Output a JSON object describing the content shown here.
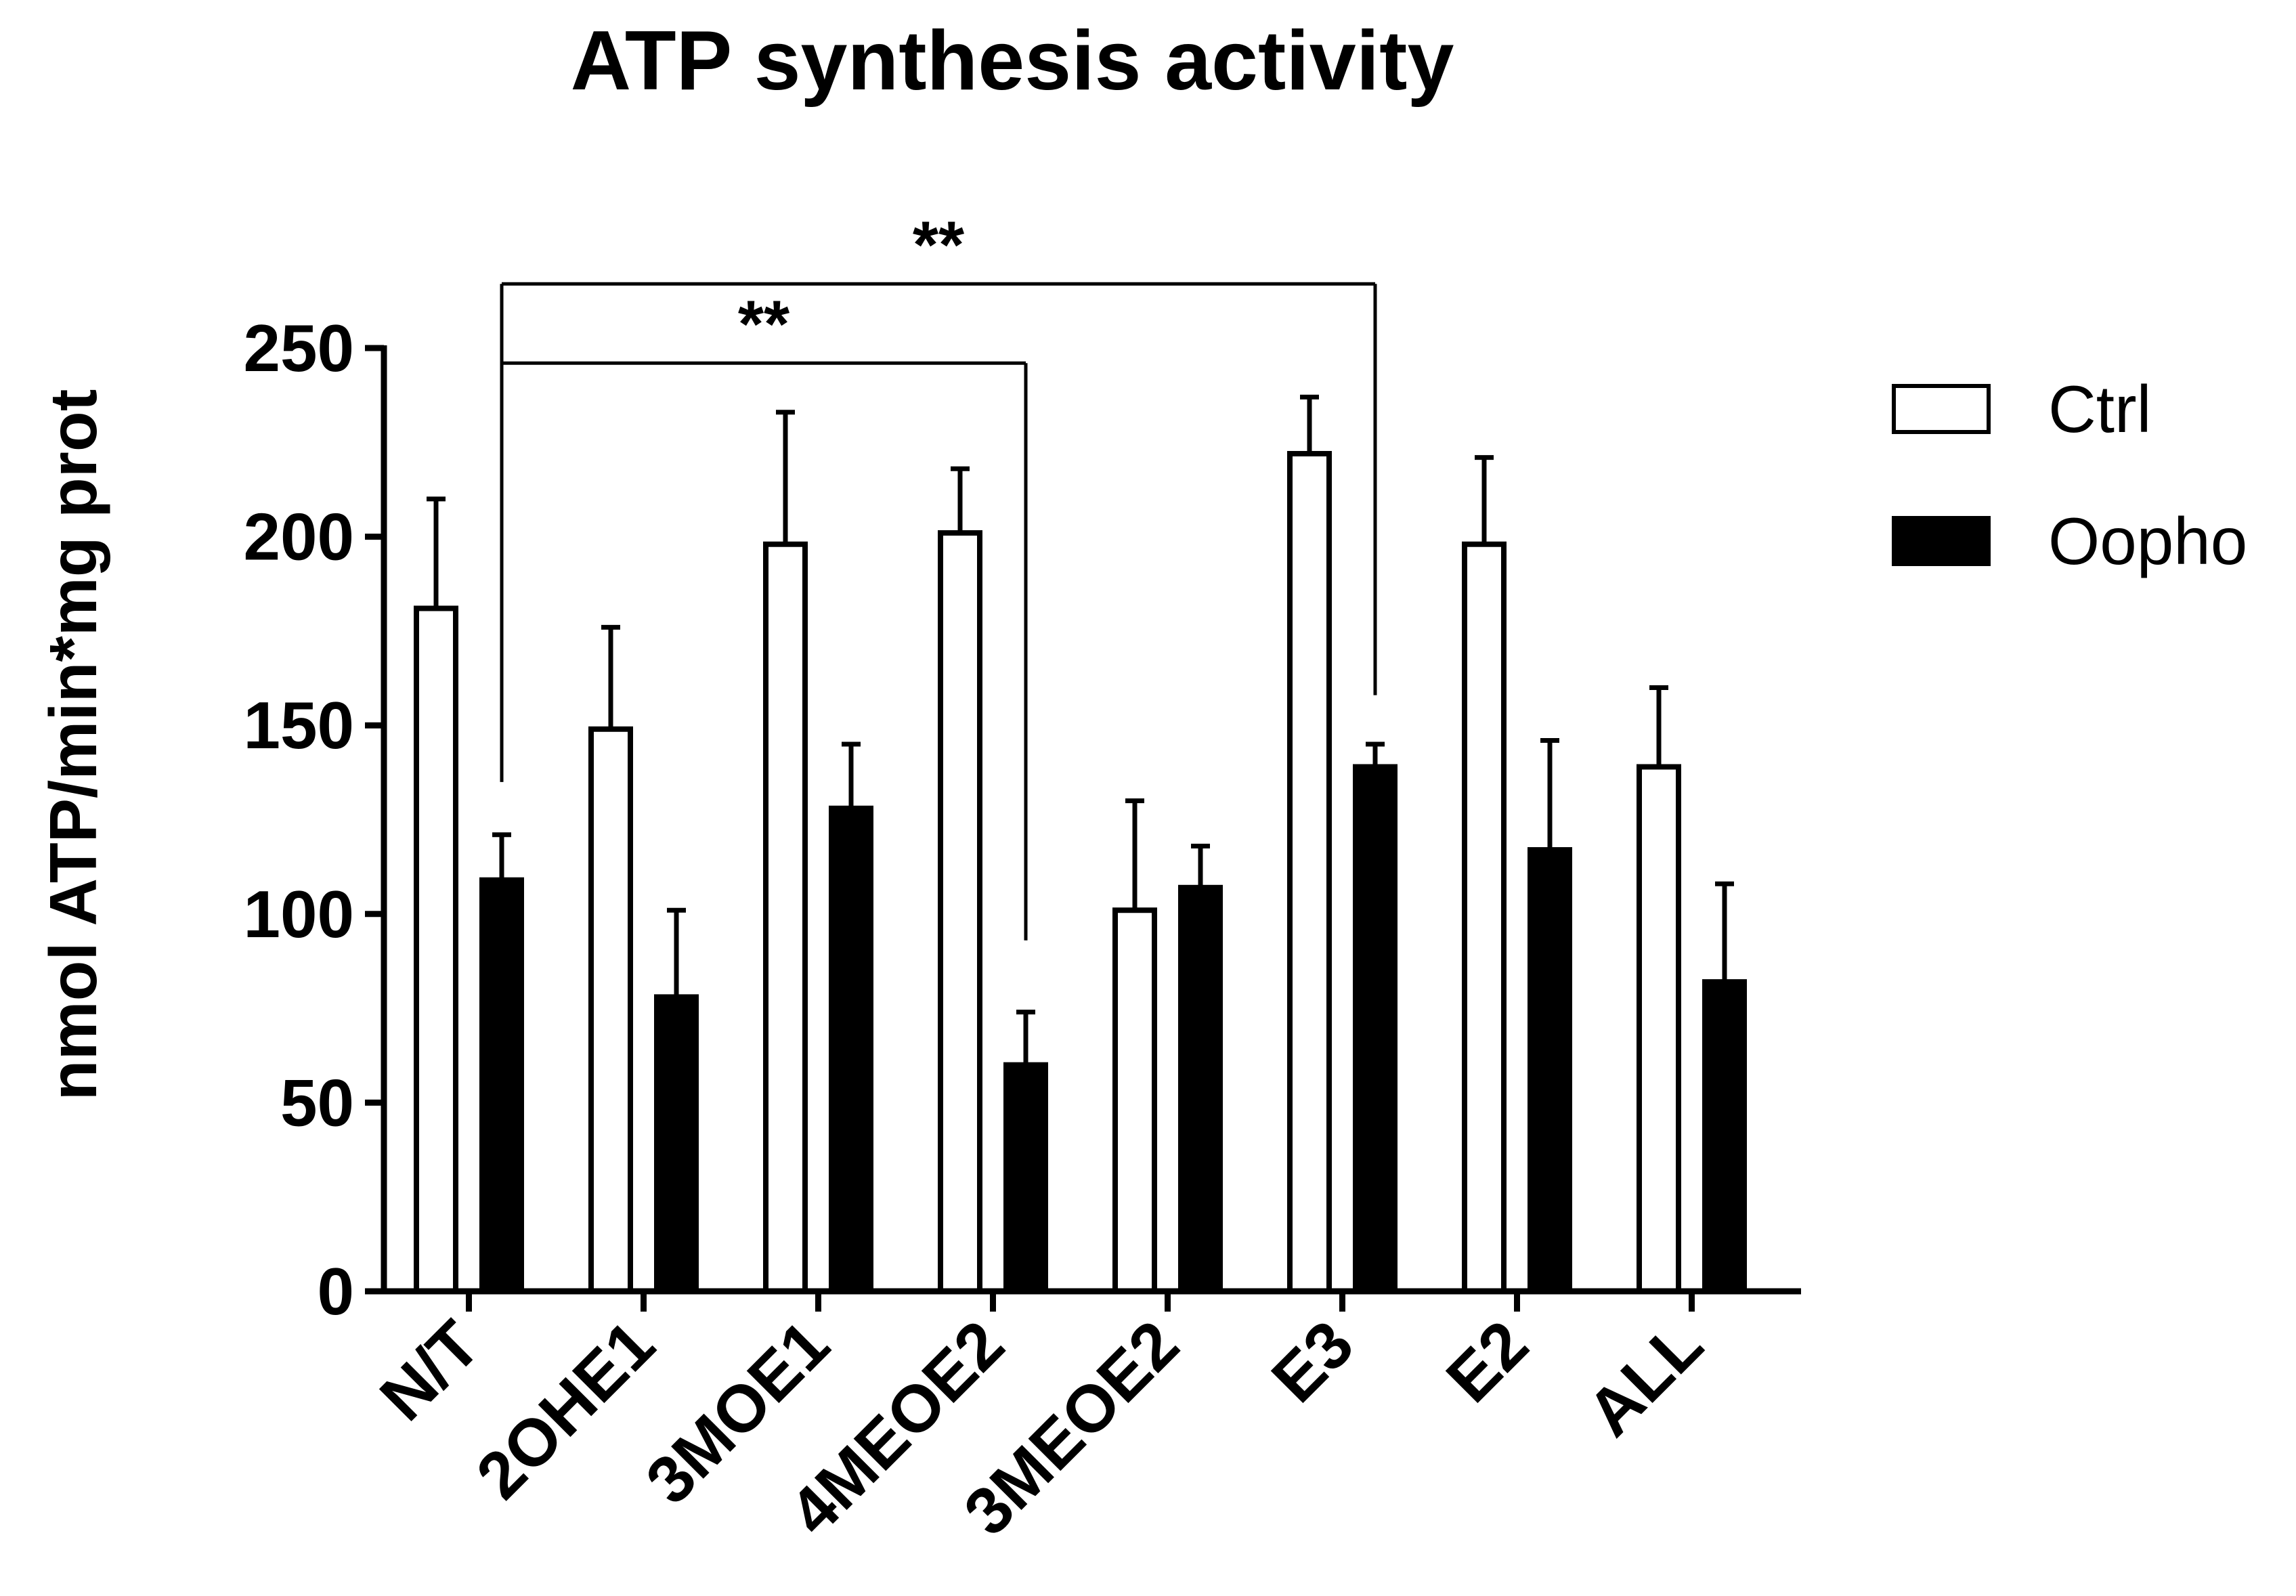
{
  "chart_data": {
    "type": "bar",
    "title": "ATP synthesis activity",
    "xlabel": "",
    "ylabel": "nmol ATP/min*mg prot",
    "ylim": [
      0,
      250
    ],
    "yticks": [
      0,
      50,
      100,
      150,
      200,
      250
    ],
    "categories": [
      "N/T",
      "2OHE1",
      "3MOE1",
      "4MEOE2",
      "3MEOE2",
      "E3",
      "E2",
      "ALL"
    ],
    "series": [
      {
        "name": "Ctrl",
        "fill": "#ffffff",
        "values": [
          181,
          149,
          198,
          201,
          101,
          222,
          198,
          139
        ],
        "errors": [
          29,
          27,
          35,
          17,
          29,
          15,
          23,
          21
        ]
      },
      {
        "name": "Oopho",
        "fill": "#000000",
        "values": [
          109,
          78,
          128,
          60,
          107,
          139,
          117,
          82
        ],
        "errors": [
          12,
          23,
          17,
          14,
          11,
          6,
          29,
          26
        ]
      }
    ],
    "legend": {
      "placement": "right"
    },
    "grid": false,
    "annotations": [
      {
        "text": "**",
        "from_category": "N/T",
        "to_category": "E3",
        "from_value": 135,
        "to_value": 158,
        "line_value": 267
      },
      {
        "text": "**",
        "from_category": "N/T",
        "to_category": "4MEOE2",
        "from_value": 135,
        "to_value": 93,
        "line_value": 246
      }
    ]
  }
}
